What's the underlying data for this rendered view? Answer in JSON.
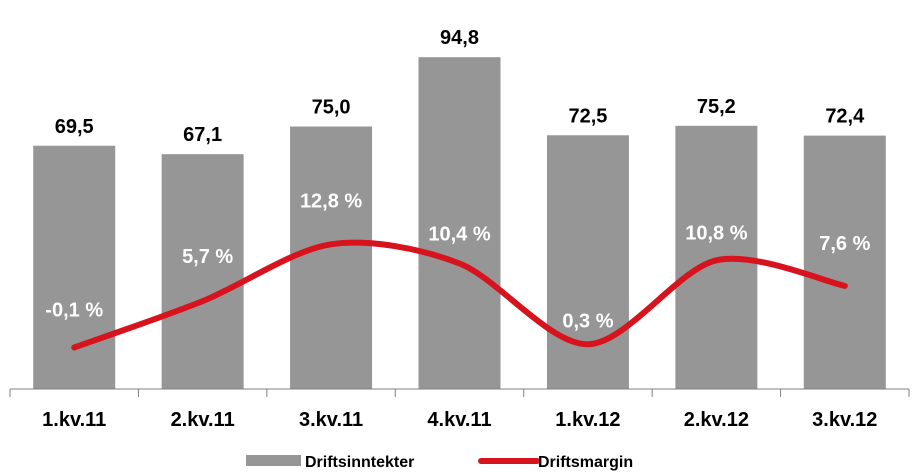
{
  "chart_data": {
    "type": "bar",
    "categories": [
      "1.kv.11",
      "2.kv.11",
      "3.kv.11",
      "4.kv.11",
      "1.kv.12",
      "2.kv.12",
      "3.kv.12"
    ],
    "series": [
      {
        "name": "Driftsinntekter",
        "type": "bar",
        "values": [
          69.5,
          67.1,
          75.0,
          94.8,
          72.5,
          75.2,
          72.4
        ],
        "labels": [
          "69,5",
          "67,1",
          "75,0",
          "94,8",
          "72,5",
          "75,2",
          "72,4"
        ],
        "color": "#969696"
      },
      {
        "name": "Driftsmargin",
        "type": "line",
        "values": [
          -0.1,
          5.7,
          12.8,
          10.4,
          0.3,
          10.8,
          7.6
        ],
        "labels": [
          "-0,1 %",
          "5,7 %",
          "12,8 %",
          "10,4 %",
          "0,3 %",
          "10,8 %",
          "7,6 %"
        ],
        "color": "#d7141e",
        "smooth": true
      }
    ],
    "ylim": [
      0,
      100
    ],
    "y2lim": [
      -4,
      25
    ],
    "grid": false,
    "legend": "bottom",
    "title": "",
    "xlabel": "",
    "ylabel": ""
  }
}
